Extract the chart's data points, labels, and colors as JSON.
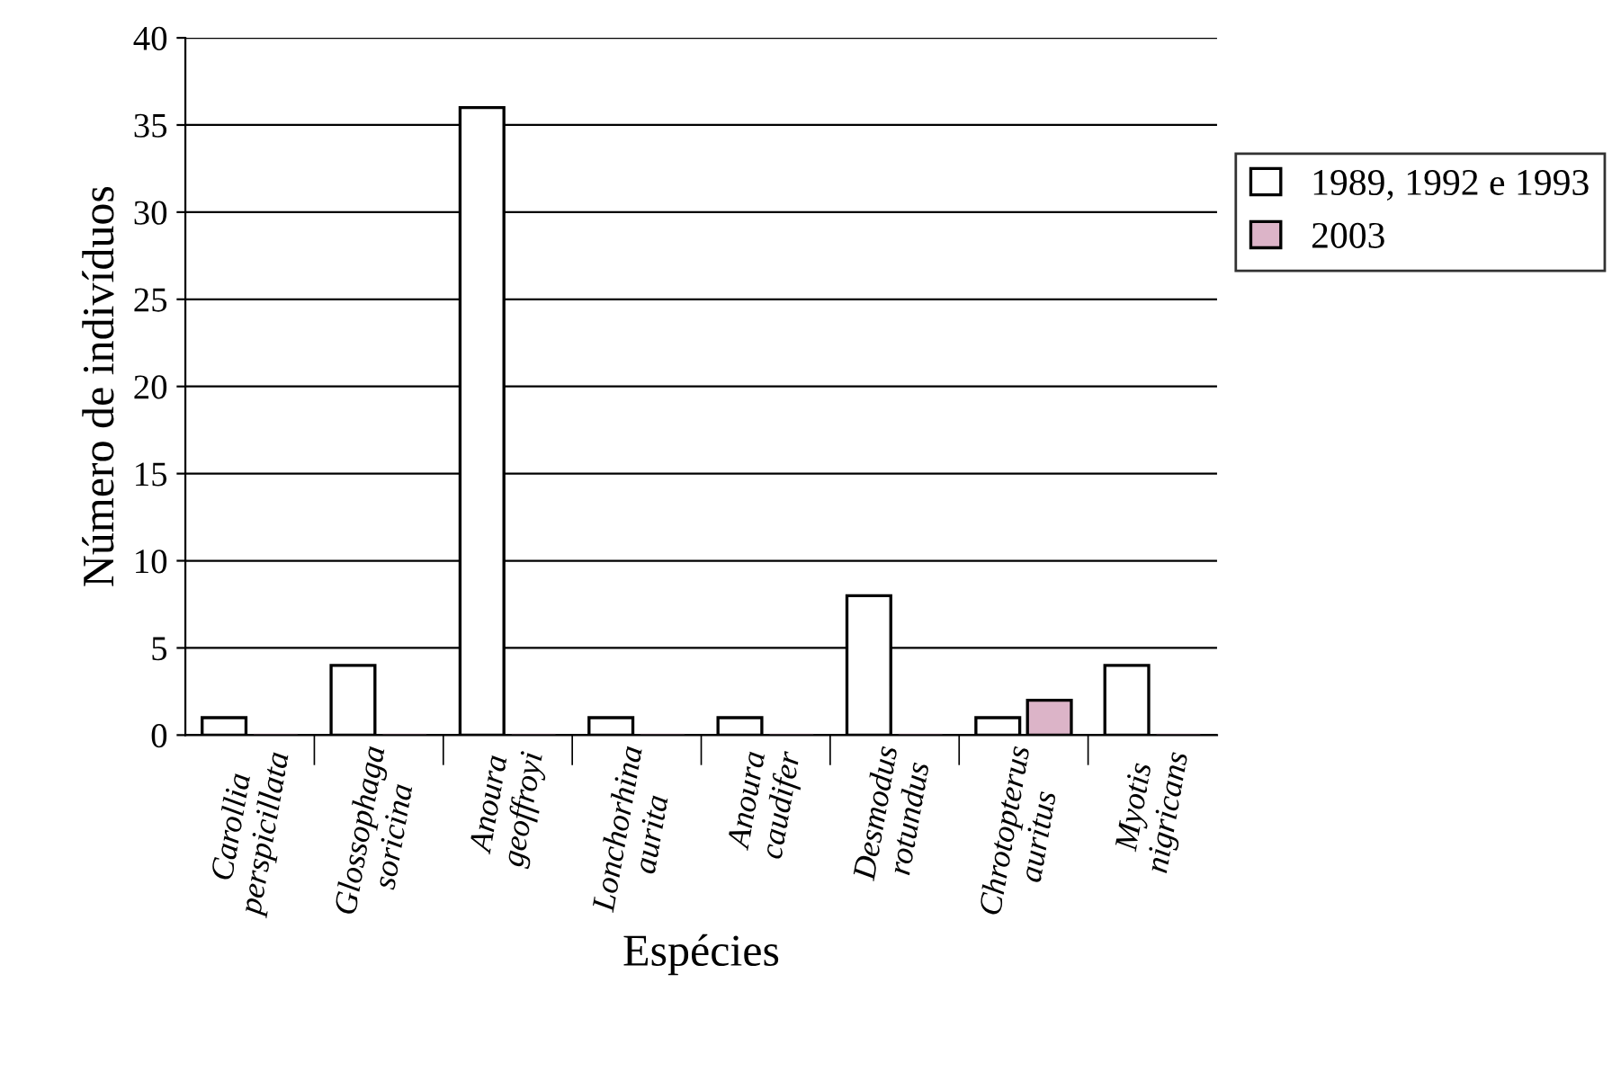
{
  "chart_data": {
    "type": "bar",
    "xlabel": "Espécies",
    "ylabel": "Número de indivíduos",
    "categories": [
      "Carollia perspicillata",
      "Glossophaga soricina",
      "Anoura geoffroyi",
      "Lonchorhina aurita",
      "Anoura caudifer",
      "Desmodus rotundus",
      "Chrotopterus auritus",
      "Myotis nigricans"
    ],
    "series": [
      {
        "name": "1989, 1992 e 1993",
        "color": "#ffffff",
        "values": [
          1,
          4,
          36,
          1,
          1,
          8,
          1,
          4
        ]
      },
      {
        "name": "2003",
        "color": "#dcb4c8",
        "values": [
          0,
          0,
          0,
          0,
          0,
          0,
          2,
          0
        ]
      }
    ],
    "ylim": [
      0,
      40
    ],
    "yticks": [
      0,
      5,
      10,
      15,
      20,
      25,
      30,
      35,
      40
    ],
    "grid": "y",
    "legend": "right"
  }
}
